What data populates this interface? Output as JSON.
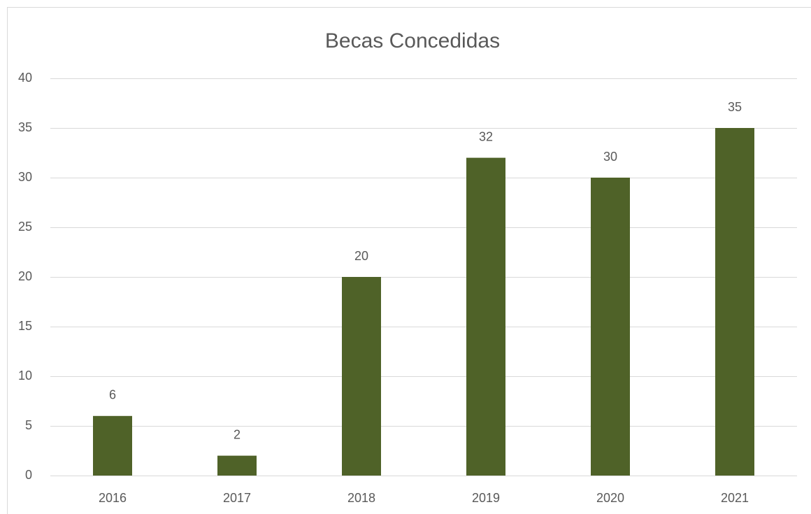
{
  "chart_data": {
    "type": "bar",
    "title": "Becas Concedidas",
    "categories": [
      "2016",
      "2017",
      "2018",
      "2019",
      "2020",
      "2021"
    ],
    "values": [
      6,
      2,
      20,
      32,
      30,
      35
    ],
    "color": "#4f6228",
    "ylim": [
      0,
      40
    ],
    "yticks": [
      0,
      5,
      10,
      15,
      20,
      25,
      30,
      35,
      40
    ],
    "grid": true,
    "data_labels": true
  }
}
